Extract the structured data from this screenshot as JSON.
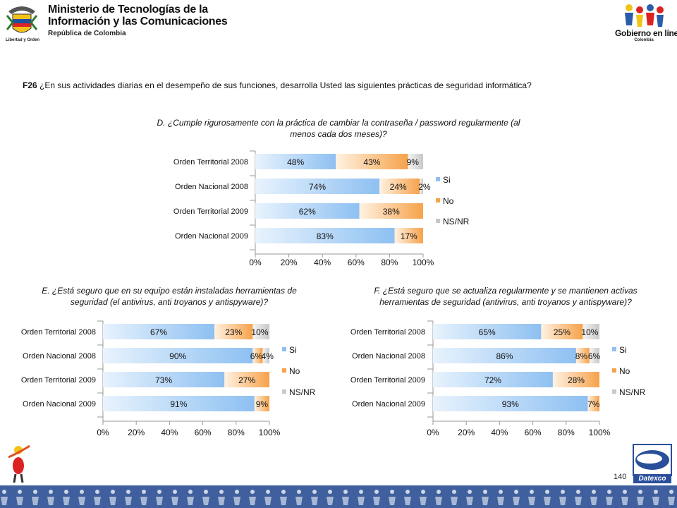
{
  "header": {
    "ministry_line1": "Ministerio de Tecnologías de la",
    "ministry_line2": "Información y las Comunicaciones",
    "ministry_sub": "República de Colombia",
    "seal_caption": "Libertad y Orden",
    "gobierno_title": "Gobierno en línea",
    "gobierno_sub": "Colombia"
  },
  "question": {
    "code": "F26",
    "text": " ¿En sus actividades diarias en el desempeño de sus funciones, desarrolla Usted las siguientes prácticas de seguridad informática?"
  },
  "footer": {
    "page_number": "140",
    "datexco_label": "Datexco"
  },
  "colors": {
    "si": "#8ec0f2",
    "no": "#f6a24a",
    "nsnr": "#c8c8c8",
    "gridline": "#9a9a9a",
    "footer_band": "#3f5f9f"
  },
  "chart_data": [
    {
      "type": "bar",
      "orientation": "horizontal",
      "stacked": "percent",
      "title_line1": "D. ¿Cumple rigurosamente con la práctica de cambiar la contraseña / password regularmente (al",
      "title_line2": "menos cada dos meses)?",
      "categories": [
        "Orden Territorial 2008",
        "Orden Nacional 2008",
        "Orden Territorial 2009",
        "Orden Nacional 2009"
      ],
      "series": [
        {
          "name": "Si",
          "values": [
            48,
            74,
            62,
            83
          ]
        },
        {
          "name": "No",
          "values": [
            43,
            24,
            38,
            17
          ]
        },
        {
          "name": "NS/NR",
          "values": [
            9,
            2,
            0,
            0
          ]
        }
      ],
      "data_labels": [
        [
          "48%",
          "43%",
          "9%"
        ],
        [
          "74%",
          "24%",
          "2%"
        ],
        [
          "62%",
          "38%",
          ""
        ],
        [
          "83%",
          "17%",
          ""
        ]
      ],
      "xticks": [
        "0%",
        "20%",
        "40%",
        "60%",
        "80%",
        "100%"
      ],
      "xlim": [
        0,
        100
      ],
      "legend": "right"
    },
    {
      "type": "bar",
      "orientation": "horizontal",
      "stacked": "percent",
      "title_line1": "E. ¿Está seguro que en su equipo están instaladas herramientas de",
      "title_line2": "seguridad (el antivirus, anti troyanos y antispyware)?",
      "categories": [
        "Orden Territorial 2008",
        "Orden Nacional 2008",
        "Orden Territorial 2009",
        "Orden Nacional 2009"
      ],
      "series": [
        {
          "name": "Si",
          "values": [
            67,
            90,
            73,
            91
          ]
        },
        {
          "name": "No",
          "values": [
            23,
            6,
            27,
            9
          ]
        },
        {
          "name": "NS/NR",
          "values": [
            10,
            4,
            0,
            0
          ]
        }
      ],
      "data_labels": [
        [
          "67%",
          "23%",
          "10%"
        ],
        [
          "90%",
          "6%",
          "4%"
        ],
        [
          "73%",
          "27%",
          ""
        ],
        [
          "91%",
          "9%",
          ""
        ]
      ],
      "xticks": [
        "0%",
        "20%",
        "40%",
        "60%",
        "80%",
        "100%"
      ],
      "xlim": [
        0,
        100
      ],
      "legend": "right"
    },
    {
      "type": "bar",
      "orientation": "horizontal",
      "stacked": "percent",
      "title_line1": "F. ¿Está seguro que se actualiza regularmente y se mantienen activas",
      "title_line2": "herramientas de seguridad (antivirus, anti troyanos  y antispyware)?",
      "categories": [
        "Orden Territorial 2008",
        "Orden Nacional 2008",
        "Orden Territorial 2009",
        "Orden Nacional 2009"
      ],
      "series": [
        {
          "name": "Si",
          "values": [
            65,
            86,
            72,
            93
          ]
        },
        {
          "name": "No",
          "values": [
            25,
            8,
            28,
            7
          ]
        },
        {
          "name": "NS/NR",
          "values": [
            10,
            6,
            0,
            0
          ]
        }
      ],
      "data_labels": [
        [
          "65%",
          "25%",
          "10%"
        ],
        [
          "86%",
          "8%",
          "6%"
        ],
        [
          "72%",
          "28%",
          ""
        ],
        [
          "93%",
          "7%",
          ""
        ]
      ],
      "xticks": [
        "0%",
        "20%",
        "40%",
        "60%",
        "80%",
        "100%"
      ],
      "xlim": [
        0,
        100
      ],
      "legend": "right"
    }
  ]
}
